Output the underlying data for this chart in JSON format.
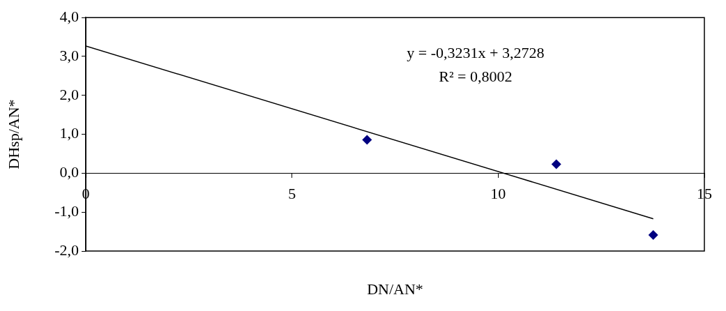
{
  "chart_data": {
    "type": "scatter",
    "xlabel": "DN/AN*",
    "ylabel": "DHsp/AN*",
    "annotations": [
      "y = -0,3231x + 3,2728",
      "R² = 0,8002"
    ],
    "x": [
      6.82,
      11.41,
      13.76
    ],
    "series": [
      {
        "color": "#000080",
        "values": [
          0.86,
          0.23,
          -1.59
        ],
        "marker": "diamond"
      },
      {
        "type": "line",
        "color": "#000000",
        "x": [
          0,
          13.76
        ],
        "values": [
          3.27,
          -1.17
        ],
        "marker": "none",
        "line_style": "solid"
      }
    ],
    "xlim": [
      0,
      15
    ],
    "xticks": [
      0,
      5,
      10,
      15
    ],
    "ylim": [
      -2,
      4
    ],
    "yticks": [
      {
        "value": -2,
        "label": "-2,0"
      },
      {
        "value": -1,
        "label": "-1,0"
      },
      {
        "value": 0,
        "label": "0,0"
      },
      {
        "value": 1,
        "label": "1,0"
      },
      {
        "value": 2,
        "label": "2,0"
      },
      {
        "value": 3,
        "label": "3,0"
      },
      {
        "value": 4,
        "label": "4,0"
      }
    ],
    "grid": false,
    "legend": false
  }
}
